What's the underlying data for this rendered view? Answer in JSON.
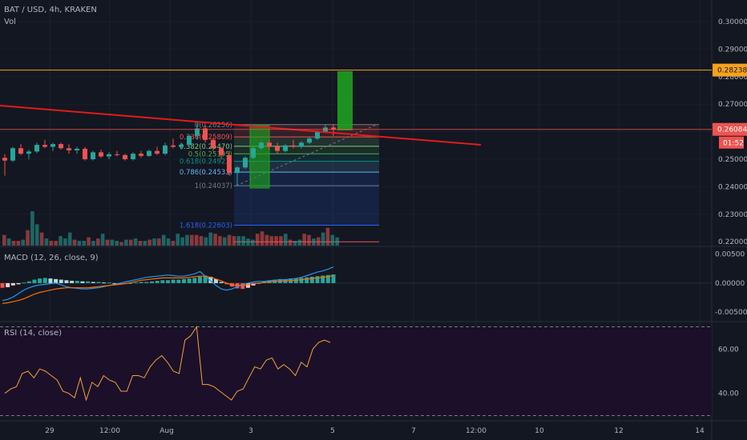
{
  "header": {
    "symbol": "BAT / USD, 4h, KRAKEN",
    "vol_label": "Vol",
    "macd_label": "MACD (12, 26, close, 9)",
    "rsi_label": "RSI (14, close)"
  },
  "price_badges": {
    "resistance": "0.28238",
    "current": "0.26084",
    "countdown": "01:52"
  },
  "colors": {
    "background": "#131722",
    "up": "#26a69a",
    "down": "#ef5350",
    "trendline": "#e31b1b",
    "resistance": "#f7a21b",
    "green_box": "#1fa01f",
    "macd_line": "#2196f3",
    "signal_line": "#ff6d00",
    "rsi_line": "#f0a33a",
    "rsi_bg": "#1c0f2a"
  },
  "chart_data": [
    {
      "type": "candlestick",
      "ylim": [
        0.22,
        0.305
      ],
      "yticks": [
        "0.30000",
        "0.29000",
        "0.28000",
        "0.27000",
        "0.26000",
        "0.25000",
        "0.24000",
        "0.23000",
        "0.22000"
      ],
      "xticks": [
        "29",
        "12:00",
        "Aug",
        "3",
        "7",
        "12:00",
        "10",
        "12",
        "14",
        "5"
      ],
      "candles": [
        [
          0.2505,
          0.2518,
          0.244,
          0.2495
        ],
        [
          0.2495,
          0.2545,
          0.249,
          0.254
        ],
        [
          0.254,
          0.2555,
          0.2515,
          0.252
        ],
        [
          0.252,
          0.2535,
          0.25,
          0.2528
        ],
        [
          0.2528,
          0.256,
          0.2522,
          0.2552
        ],
        [
          0.2552,
          0.257,
          0.254,
          0.2545
        ],
        [
          0.2545,
          0.256,
          0.253,
          0.2555
        ],
        [
          0.2555,
          0.256,
          0.2535,
          0.254
        ],
        [
          0.254,
          0.2555,
          0.252,
          0.2532
        ],
        [
          0.2532,
          0.2545,
          0.252,
          0.2538
        ],
        [
          0.2538,
          0.2545,
          0.2495,
          0.25
        ],
        [
          0.25,
          0.253,
          0.2495,
          0.2525
        ],
        [
          0.2525,
          0.2535,
          0.2505,
          0.251
        ],
        [
          0.251,
          0.2525,
          0.25,
          0.2518
        ],
        [
          0.2518,
          0.253,
          0.251,
          0.2515
        ],
        [
          0.2515,
          0.252,
          0.2495,
          0.25
        ],
        [
          0.25,
          0.2525,
          0.2495,
          0.252
        ],
        [
          0.252,
          0.253,
          0.2505,
          0.2512
        ],
        [
          0.2512,
          0.2535,
          0.2508,
          0.253
        ],
        [
          0.253,
          0.2545,
          0.2515,
          0.252
        ],
        [
          0.252,
          0.256,
          0.2515,
          0.255
        ],
        [
          0.255,
          0.2575,
          0.254,
          0.2545
        ],
        [
          0.2545,
          0.256,
          0.2535,
          0.2552
        ],
        [
          0.2552,
          0.259,
          0.2548,
          0.2585
        ],
        [
          0.2585,
          0.263,
          0.257,
          0.2612
        ],
        [
          0.2612,
          0.2626,
          0.256,
          0.257
        ],
        [
          0.257,
          0.258,
          0.253,
          0.254
        ],
        [
          0.254,
          0.2545,
          0.25,
          0.2515
        ],
        [
          0.2515,
          0.253,
          0.244,
          0.245
        ],
        [
          0.245,
          0.2475,
          0.2404,
          0.247
        ],
        [
          0.247,
          0.251,
          0.2465,
          0.2505
        ],
        [
          0.2505,
          0.2545,
          0.25,
          0.254
        ],
        [
          0.254,
          0.2565,
          0.2535,
          0.256
        ],
        [
          0.256,
          0.257,
          0.2535,
          0.2545
        ],
        [
          0.2545,
          0.256,
          0.252,
          0.253
        ],
        [
          0.253,
          0.2555,
          0.2525,
          0.255
        ],
        [
          0.255,
          0.257,
          0.254,
          0.2545
        ],
        [
          0.2545,
          0.2565,
          0.254,
          0.256
        ],
        [
          0.256,
          0.258,
          0.2555,
          0.2575
        ],
        [
          0.2575,
          0.2605,
          0.257,
          0.26
        ],
        [
          0.26,
          0.2625,
          0.2595,
          0.2615
        ],
        [
          0.2615,
          0.2626,
          0.2585,
          0.2608
        ]
      ],
      "resistance_level": 0.28238,
      "current_price": 0.26084
    },
    {
      "type": "bar",
      "name": "volume",
      "values": [
        9,
        6,
        4,
        4,
        5,
        13,
        29,
        18,
        11,
        6,
        4,
        4,
        8,
        6,
        11,
        5,
        4,
        4,
        7,
        4,
        6,
        10,
        5,
        5,
        4,
        3,
        5,
        5,
        6,
        4,
        4,
        5,
        6,
        6,
        9,
        6,
        4,
        10,
        7,
        9,
        9,
        9,
        8,
        7,
        11,
        10,
        8,
        7,
        9,
        8,
        8,
        8,
        6,
        5,
        10,
        12,
        9,
        8,
        8,
        8,
        10,
        5,
        4,
        5,
        10,
        9,
        6,
        7,
        11,
        15,
        9,
        7
      ],
      "up": [
        0,
        1,
        0,
        0,
        1,
        0,
        1,
        1,
        0,
        1,
        0,
        0,
        1,
        1,
        1,
        0,
        1,
        1,
        0,
        1,
        0,
        1,
        0,
        1,
        1,
        0,
        1,
        0,
        1,
        0,
        1,
        0,
        1,
        0,
        1,
        1,
        0,
        1,
        1,
        1,
        0,
        0,
        0,
        1,
        1,
        0,
        0,
        1,
        0,
        0,
        1,
        1,
        1,
        1,
        0,
        0,
        0,
        0,
        0,
        0,
        1,
        0,
        1,
        1,
        0,
        0,
        1,
        0,
        1,
        0,
        1,
        1
      ]
    },
    {
      "type": "line",
      "name": "MACD",
      "ylim": [
        -0.0065,
        0.0062
      ],
      "yticks": [
        "0.00500",
        "0.00000",
        "-0.00500"
      ],
      "histogram": [
        -0.0008,
        -0.0007,
        -0.0004,
        -0.0002,
        0.0001,
        0.0003,
        0.0006,
        0.0008,
        0.0009,
        0.0008,
        0.0007,
        0.0006,
        0.0005,
        0.0004,
        0.0004,
        0.0003,
        0.0003,
        0.0002,
        0.0002,
        0.0001,
        0.0001,
        0.0,
        -0.0001,
        -0.0001,
        0.0,
        0.0001,
        0.0002,
        0.0002,
        0.0003,
        0.0004,
        0.0005,
        0.0005,
        0.0006,
        0.0006,
        0.0007,
        0.0008,
        0.0009,
        0.0011,
        0.0013,
        0.0011,
        0.0007,
        0.0002,
        -0.0002,
        -0.0006,
        -0.0009,
        -0.001,
        -0.0008,
        -0.0004,
        0.0,
        0.0003,
        0.0005,
        0.0006,
        0.0007,
        0.0007,
        0.0008,
        0.0008,
        0.0009,
        0.001,
        0.0011,
        0.0012,
        0.0013,
        0.0014,
        0.0015
      ],
      "macd": [
        -0.003,
        -0.0028,
        -0.0024,
        -0.0018,
        -0.0012,
        -0.0008,
        -0.0005,
        -0.0003,
        -0.0002,
        -0.0001,
        0.0,
        -0.0003,
        -0.0006,
        -0.0008,
        -0.0009,
        -0.001,
        -0.001,
        -0.0009,
        -0.0008,
        -0.0006,
        -0.0004,
        -0.0002,
        0.0,
        0.0002,
        0.0004,
        0.0006,
        0.0008,
        0.001,
        0.0011,
        0.0012,
        0.0013,
        0.0014,
        0.0013,
        0.0012,
        0.0012,
        0.0014,
        0.0016,
        0.002,
        0.0012,
        0.0004,
        -0.0004,
        -0.001,
        -0.0012,
        -0.001,
        -0.0006,
        -0.0002,
        0.0,
        0.0002,
        0.0003,
        0.0003,
        0.0004,
        0.0005,
        0.0006,
        0.0006,
        0.0007,
        0.0008,
        0.001,
        0.0013,
        0.0016,
        0.0019,
        0.0021,
        0.0024,
        0.0028
      ],
      "signal": [
        -0.0035,
        -0.0034,
        -0.0032,
        -0.003,
        -0.0027,
        -0.0023,
        -0.0019,
        -0.0016,
        -0.0014,
        -0.0012,
        -0.001,
        -0.0009,
        -0.0008,
        -0.0008,
        -0.0008,
        -0.0008,
        -0.0008,
        -0.0007,
        -0.0006,
        -0.0005,
        -0.0004,
        -0.0003,
        -0.0002,
        -0.0001,
        0.0001,
        0.0003,
        0.0005,
        0.0006,
        0.0007,
        0.0008,
        0.0009,
        0.0009,
        0.0009,
        0.0009,
        0.0009,
        0.001,
        0.0011,
        0.0012,
        0.0012,
        0.001,
        0.0007,
        0.0004,
        0.0,
        -0.0003,
        -0.0004,
        -0.0004,
        -0.0003,
        -0.0001,
        0.0,
        0.0001,
        0.0002,
        0.0003,
        0.0003,
        0.0004,
        0.0004,
        0.0005,
        0.0006,
        0.0007,
        0.0008,
        0.0009,
        0.001,
        0.0011,
        0.0013
      ]
    },
    {
      "type": "line",
      "name": "RSI",
      "ylim": [
        28,
        72
      ],
      "yticks": [
        "60.00",
        "40.00"
      ],
      "bands": [
        70,
        30
      ],
      "values": [
        40,
        42,
        43,
        49,
        50,
        47,
        51,
        50,
        48,
        46,
        41,
        40,
        38,
        47,
        37,
        45,
        43,
        48,
        46,
        45,
        41,
        41,
        48,
        48,
        47,
        52,
        55,
        57,
        54,
        50,
        49,
        64,
        66,
        70,
        44,
        44,
        43,
        41,
        39,
        37,
        41,
        42,
        47,
        52,
        51,
        55,
        56,
        51,
        53,
        51,
        48,
        54,
        52,
        60,
        63,
        64,
        63
      ]
    }
  ]
}
